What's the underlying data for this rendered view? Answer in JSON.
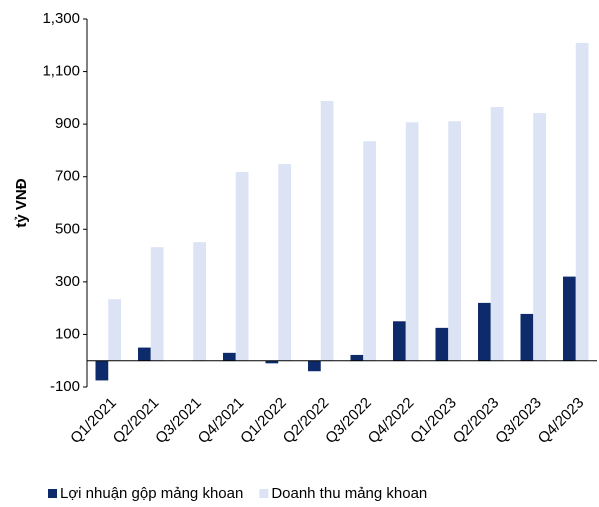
{
  "chart_data": {
    "type": "bar",
    "y_label": "tỷ VNĐ",
    "categories": [
      "Q1/2021",
      "Q2/2021",
      "Q3/2021",
      "Q4/2021",
      "Q1/2022",
      "Q2/2022",
      "Q3/2022",
      "Q4/2022",
      "Q1/2023",
      "Q2/2023",
      "Q3/2023",
      "Q4/2023"
    ],
    "series": [
      {
        "name": "Lợi nhuận gộp mảng khoan",
        "color": "#0d2a6b",
        "values": [
          -75,
          50,
          0,
          30,
          -10,
          -40,
          22,
          150,
          125,
          220,
          178,
          320
        ]
      },
      {
        "name": "Doanh thu mảng khoan",
        "color": "#dce3f5",
        "values": [
          234,
          432,
          451,
          718,
          748,
          988,
          835,
          907,
          911,
          965,
          942,
          1209
        ]
      }
    ],
    "ylim": [
      -100,
      1300
    ],
    "yticks": [
      -100,
      100,
      300,
      500,
      700,
      900,
      {
        "value": 1100,
        "label": "1,100"
      },
      {
        "value": 1300,
        "label": "1,300"
      }
    ],
    "grid": false,
    "legend": "bottom"
  }
}
